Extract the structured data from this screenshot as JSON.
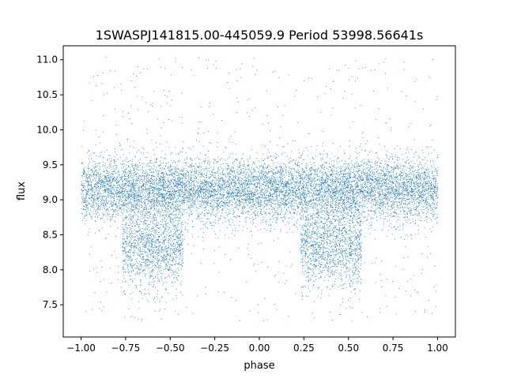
{
  "chart_data": {
    "type": "scatter",
    "title": "1SWASPJ141815.00-445059.9 Period 53998.56641s",
    "xlabel": "phase",
    "ylabel": "flux",
    "xlim": [
      -1.1,
      1.1
    ],
    "ylim": [
      7.04,
      11.2
    ],
    "xticks": [
      -1.0,
      -0.75,
      -0.5,
      -0.25,
      0.0,
      0.25,
      0.5,
      0.75,
      1.0
    ],
    "xtick_labels": [
      "−1.00",
      "−0.75",
      "−0.50",
      "−0.25",
      "0.00",
      "0.25",
      "0.50",
      "0.75",
      "1.00"
    ],
    "yticks": [
      7.5,
      8.0,
      8.5,
      9.0,
      9.5,
      10.0,
      10.5,
      11.0
    ],
    "ytick_labels": [
      "7.5",
      "8.0",
      "8.5",
      "9.0",
      "9.5",
      "10.0",
      "10.5",
      "11.0"
    ],
    "grid": false,
    "legend": "none",
    "marker_color": "#1f77b4",
    "series": [
      {
        "phase_range": [
          -1.0,
          1.0
        ],
        "baseline_flux": 9.15,
        "baseline_spread": 0.22,
        "dips": [
          {
            "phase_center": -0.6,
            "phase_halfwidth": 0.17,
            "flux_center": 8.35,
            "flux_spread": 0.3
          },
          {
            "phase_center": 0.4,
            "phase_halfwidth": 0.17,
            "flux_center": 8.35,
            "flux_spread": 0.3
          }
        ],
        "outlier_range": [
          7.25,
          11.05
        ]
      }
    ]
  }
}
